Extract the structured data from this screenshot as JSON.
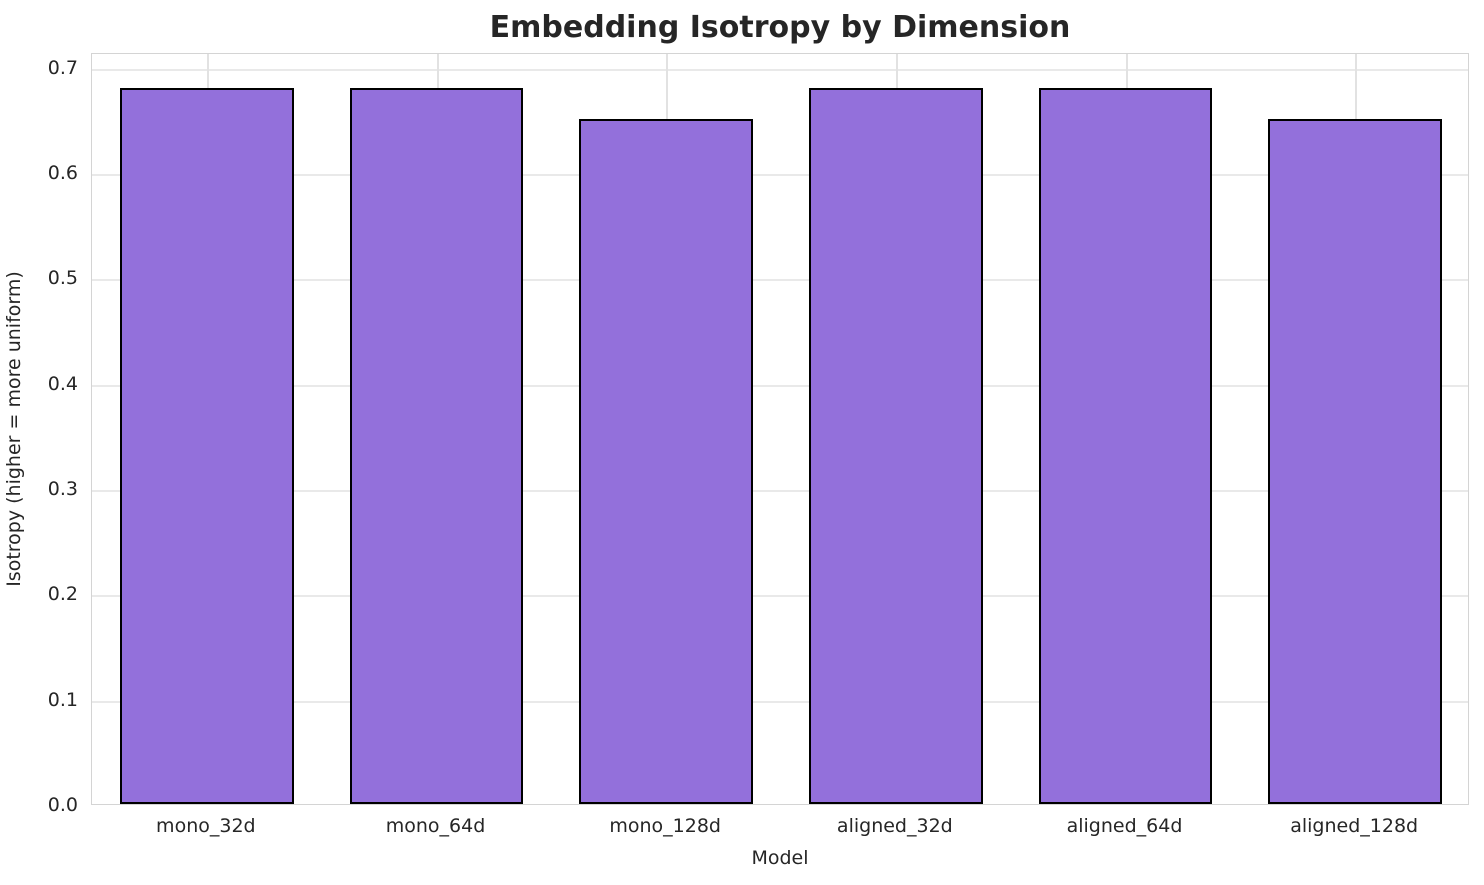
{
  "chart_data": {
    "type": "bar",
    "title": "Embedding Isotropy by Dimension",
    "xlabel": "Model",
    "ylabel": "Isotropy (higher = more uniform)",
    "categories": [
      "mono_32d",
      "mono_64d",
      "mono_128d",
      "aligned_32d",
      "aligned_64d",
      "aligned_128d"
    ],
    "values": [
      0.68,
      0.68,
      0.65,
      0.68,
      0.68,
      0.65
    ],
    "yticks": [
      0.0,
      0.1,
      0.2,
      0.3,
      0.4,
      0.5,
      0.6,
      0.7
    ],
    "ylim": [
      0,
      0.714
    ],
    "grid": true,
    "legend": "none",
    "bar_color": "#9370DB",
    "bar_edge_color": "#000000",
    "grid_color": "#e9e9e9",
    "spine_color": "#d4d4d4",
    "text_color": "#262626"
  }
}
